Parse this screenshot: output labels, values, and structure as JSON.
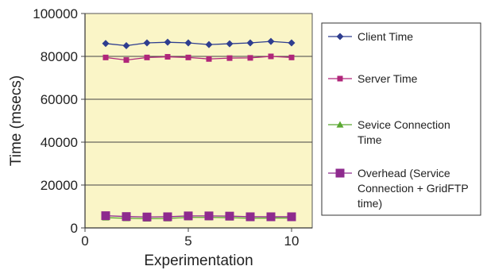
{
  "chart_data": {
    "type": "line",
    "title": "",
    "xlabel": "Experimentation",
    "ylabel": "Time (msecs)",
    "xlim": [
      0,
      11
    ],
    "ylim": [
      0,
      100000
    ],
    "x_ticks": [
      0,
      5,
      10
    ],
    "y_ticks": [
      0,
      20000,
      40000,
      60000,
      80000,
      100000
    ],
    "grid": "horizontal",
    "legend_position": "right",
    "plot_background": "#faf5c7",
    "x": [
      1,
      2,
      3,
      4,
      5,
      6,
      7,
      8,
      9,
      10
    ],
    "series": [
      {
        "name": "Client Time",
        "color": "#2e3d8f",
        "marker": "diamond",
        "values": [
          86000,
          85000,
          86300,
          86600,
          86300,
          85500,
          85900,
          86300,
          87000,
          86300
        ]
      },
      {
        "name": "Server Time",
        "color": "#b0267a",
        "marker": "square",
        "values": [
          79500,
          78300,
          79500,
          79800,
          79500,
          78800,
          79200,
          79300,
          80000,
          79500
        ]
      },
      {
        "name": "Sevice Connection Time",
        "color": "#5aa832",
        "marker": "triangle",
        "values": [
          4800,
          4500,
          4300,
          4400,
          4900,
          4900,
          4800,
          4500,
          4600,
          4600
        ]
      },
      {
        "name": "Overhead (Service Connection + GridFTP time)",
        "color": "#8e2a8e",
        "marker": "big-square",
        "values": [
          5700,
          5300,
          5100,
          5200,
          5600,
          5600,
          5500,
          5200,
          5200,
          5200
        ]
      }
    ]
  }
}
